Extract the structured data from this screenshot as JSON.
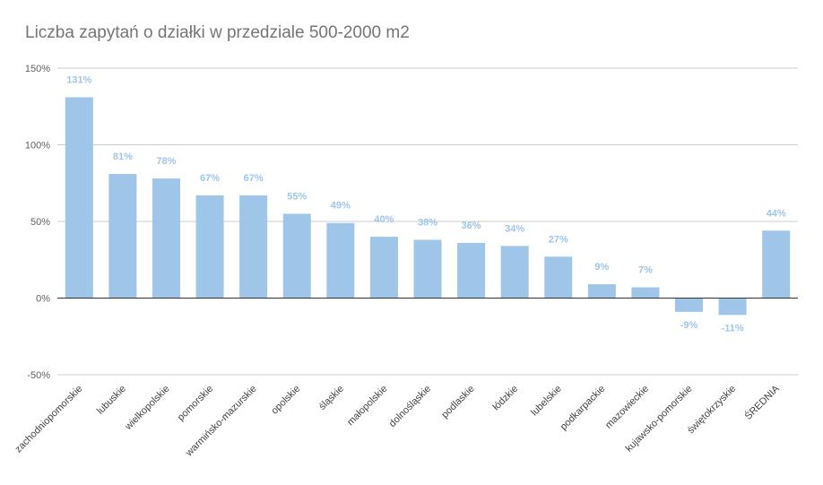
{
  "chart_data": {
    "type": "bar",
    "title": "Liczba zapytań o działki w przedziale 500-2000 m2",
    "xlabel": "",
    "ylabel": "",
    "ylim": [
      -50,
      150
    ],
    "yticks": [
      -50,
      0,
      50,
      100,
      150
    ],
    "ytick_labels": [
      "-50%",
      "0%",
      "50%",
      "100%",
      "150%"
    ],
    "grid": true,
    "bar_color": "#9fc5e8",
    "label_color": "#9fc5e8",
    "gridline_color": "#cccccc",
    "zero_line_color": "#333333",
    "categories": [
      "zachodniopomorskie",
      "lubuskie",
      "wielkopolskie",
      "pomorskie",
      "warmińsko-mazurskie",
      "opolskie",
      "śląskie",
      "małopolskie",
      "dolnośląskie",
      "podlaskie",
      "łódzkie",
      "lubelskie",
      "podkarpackie",
      "mazowieckie",
      "kujawsko-pomorskie",
      "świętokrzyskie",
      "ŚREDNIA"
    ],
    "values": [
      131,
      81,
      78,
      67,
      67,
      55,
      49,
      40,
      38,
      36,
      34,
      27,
      9,
      7,
      -9,
      -11,
      44
    ],
    "value_labels": [
      "131%",
      "81%",
      "78%",
      "67%",
      "67%",
      "55%",
      "49%",
      "40%",
      "38%",
      "36%",
      "34%",
      "27%",
      "9%",
      "7%",
      "-9%",
      "-11%",
      "44%"
    ]
  }
}
